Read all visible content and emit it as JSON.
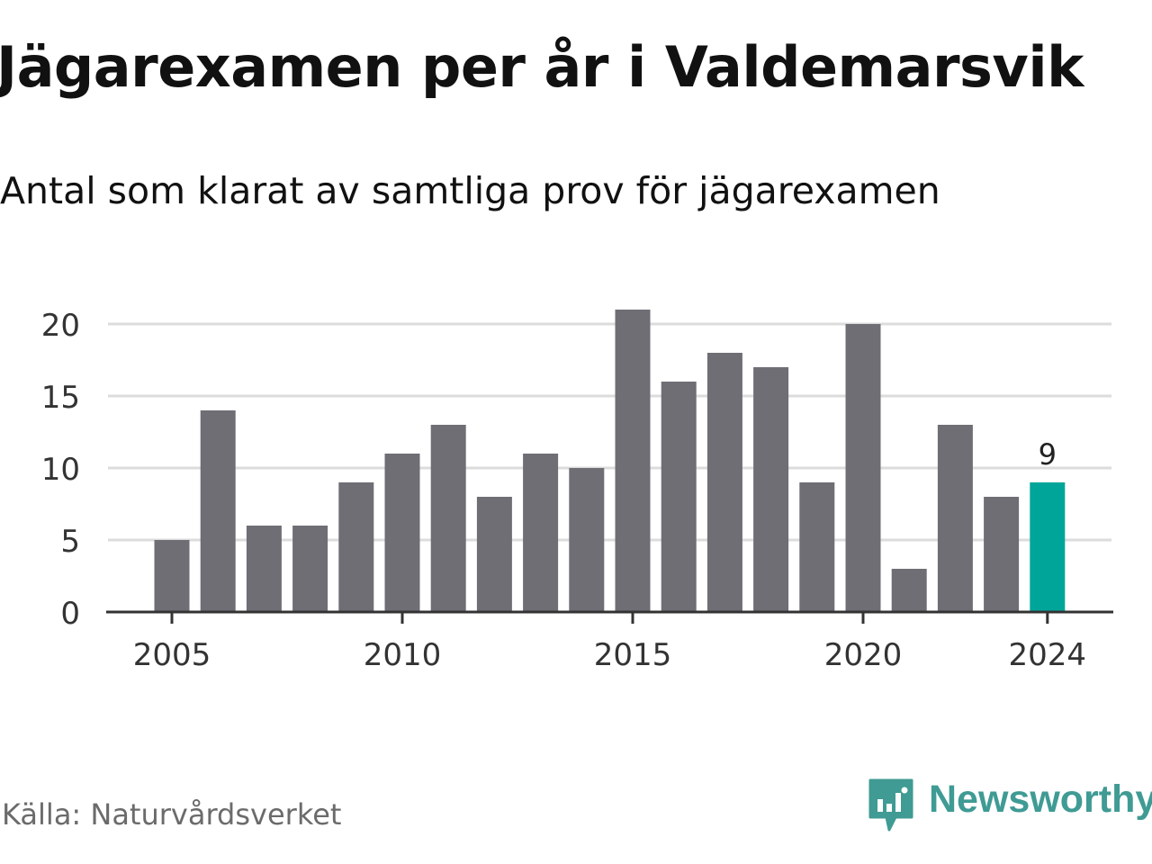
{
  "title": "Jägarexamen per år i Valdemarsvik",
  "subtitle": "Antal som klarat av samtliga prov för jägarexamen",
  "source": "Källa: Naturvårdsverket",
  "brand": {
    "name": "Newsworthy",
    "color": "#3f9b94",
    "icon": "newsworthy-logo-icon"
  },
  "colors": {
    "bar": "#6f6e75",
    "highlight": "#00a59a",
    "grid": "#dcdcdc",
    "axis": "#333333"
  },
  "chart_data": {
    "type": "bar",
    "title": "Jägarexamen per år i Valdemarsvik",
    "subtitle": "Antal som klarat av samtliga prov för jägarexamen",
    "categories": [
      2005,
      2006,
      2007,
      2008,
      2009,
      2010,
      2011,
      2012,
      2013,
      2014,
      2015,
      2016,
      2017,
      2018,
      2019,
      2020,
      2021,
      2022,
      2023,
      2024
    ],
    "values": [
      5,
      14,
      6,
      6,
      9,
      11,
      13,
      8,
      11,
      10,
      21,
      16,
      18,
      17,
      9,
      20,
      3,
      13,
      8,
      9
    ],
    "x_ticks": [
      2005,
      2010,
      2015,
      2020,
      2024
    ],
    "y_ticks": [
      0,
      5,
      10,
      15,
      20
    ],
    "ylim": [
      0,
      22
    ],
    "highlight_category": 2024,
    "data_labels": [
      {
        "category": 2024,
        "text": "9"
      }
    ],
    "xlabel": "",
    "ylabel": "",
    "grid": true,
    "legend": "none"
  }
}
